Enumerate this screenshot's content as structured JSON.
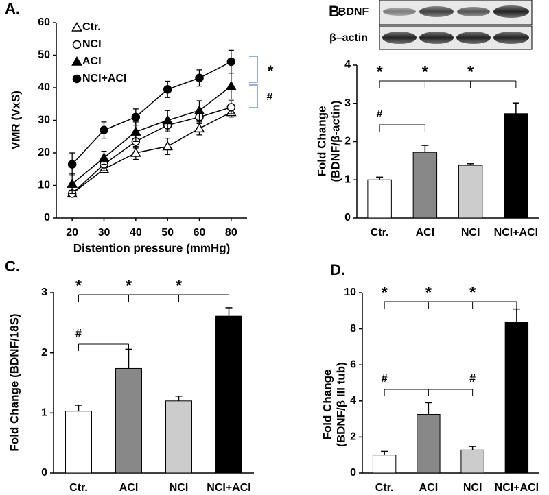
{
  "chart_data": [
    {
      "type": "line",
      "panel": "A.",
      "xlabel": "Distention pressure (mmHg)",
      "ylabel": [
        "VMR (VxS)"
      ],
      "categories": [
        "20",
        "30",
        "40",
        "50",
        "60",
        "80"
      ],
      "ylim": [
        0,
        60
      ],
      "yticks": [
        0,
        10,
        20,
        30,
        40,
        50,
        60
      ],
      "series": [
        {
          "name": "Ctr.",
          "color": "#000000",
          "marker": "triangle-open",
          "values": [
            7.5,
            15,
            20,
            22,
            27.5,
            32.5
          ],
          "errors": [
            1,
            1,
            2,
            2.5,
            2,
            1.5
          ]
        },
        {
          "name": "NCI",
          "color": "#000000",
          "marker": "circle-open",
          "values": [
            7.5,
            16.5,
            23.5,
            28.5,
            31,
            34
          ],
          "errors": [
            1,
            2,
            2,
            2,
            2,
            2
          ]
        },
        {
          "name": "ACI",
          "color": "#000000",
          "marker": "triangle-filled",
          "values": [
            10.5,
            18.5,
            26.5,
            30,
            33,
            40.5
          ],
          "errors": [
            3,
            2,
            3,
            3,
            3,
            4
          ]
        },
        {
          "name": "NCI+ACI",
          "color": "#000000",
          "marker": "circle-filled",
          "values": [
            16.5,
            27,
            31,
            39.5,
            43,
            48
          ],
          "errors": [
            3.5,
            2.5,
            2.5,
            2.5,
            2.5,
            3.5
          ]
        }
      ],
      "annotations": [
        "*",
        "#"
      ]
    },
    {
      "type": "bar",
      "panel": "B.",
      "ylabel": [
        "Fold Change",
        "(BDNF/β-actin)"
      ],
      "blot_labels": [
        "BDNF",
        "β–actin"
      ],
      "categories": [
        "Ctr.",
        "ACI",
        "NCI",
        "NCI+ACI"
      ],
      "values": [
        1.0,
        1.72,
        1.38,
        2.73
      ],
      "errors": [
        0.07,
        0.18,
        0.04,
        0.28
      ],
      "colors": [
        "#ffffff",
        "#888888",
        "#cccccc",
        "#000000"
      ],
      "ylim": [
        0,
        4
      ],
      "yticks": [
        0,
        1,
        2,
        3,
        4
      ],
      "annotations": [
        "*",
        "*",
        "*",
        "#"
      ]
    },
    {
      "type": "bar",
      "panel": "C.",
      "ylabel": [
        "Fold Change (BDNF/18S)"
      ],
      "categories": [
        "Ctr.",
        "ACI",
        "NCI",
        "NCI+ACI"
      ],
      "values": [
        1.03,
        1.74,
        1.2,
        2.61
      ],
      "errors": [
        0.1,
        0.32,
        0.08,
        0.14
      ],
      "colors": [
        "#ffffff",
        "#888888",
        "#cccccc",
        "#000000"
      ],
      "ylim": [
        0,
        3
      ],
      "yticks": [
        0,
        1,
        2,
        3
      ],
      "annotations": [
        "*",
        "*",
        "*",
        "#"
      ]
    },
    {
      "type": "bar",
      "panel": "D.",
      "ylabel": [
        "Fold Change",
        "(BDNF/β III tub)"
      ],
      "categories": [
        "Ctr.",
        "ACI",
        "NCI",
        "NCI+ACI"
      ],
      "values": [
        1.0,
        3.25,
        1.28,
        8.35
      ],
      "errors": [
        0.2,
        0.65,
        0.2,
        0.75
      ],
      "colors": [
        "#ffffff",
        "#888888",
        "#cccccc",
        "#000000"
      ],
      "ylim": [
        0,
        10
      ],
      "yticks": [
        0,
        2,
        4,
        6,
        8,
        10
      ],
      "annotations": [
        "*",
        "*",
        "*",
        "#",
        "#"
      ]
    }
  ]
}
